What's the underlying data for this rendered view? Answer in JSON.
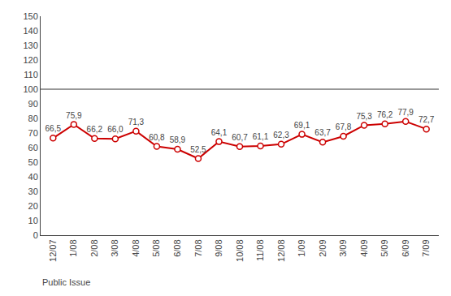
{
  "chart_data": {
    "type": "line",
    "categories": [
      "12/07",
      "1/08",
      "2/08",
      "3/08",
      "4/08",
      "5/08",
      "6/08",
      "7/08",
      "9/08",
      "10/08",
      "11/08",
      "12/08",
      "1/09",
      "2/09",
      "3/09",
      "4/09",
      "5/09",
      "6/09",
      "7/09"
    ],
    "values": [
      66.5,
      75.9,
      66.2,
      66.0,
      71.3,
      60.8,
      58.9,
      52.5,
      64.1,
      60.7,
      61.1,
      62.3,
      69.1,
      63.7,
      67.8,
      75.3,
      76.2,
      77.9,
      72.7
    ],
    "value_labels": [
      "66,5",
      "75,9",
      "66,2",
      "66,0",
      "71,3",
      "60,8",
      "58,9",
      "52,5",
      "64,1",
      "60,7",
      "61,1",
      "62,3",
      "69,1",
      "63,7",
      "67,8",
      "75,3",
      "76,2",
      "77,9",
      "72,7"
    ],
    "data_labels": true,
    "color": "#cc0000",
    "marker": "circle",
    "hline": 100,
    "hline_color": "#333333",
    "ylim": [
      0,
      150
    ],
    "yticks": [
      0,
      10,
      20,
      30,
      40,
      50,
      60,
      70,
      80,
      90,
      100,
      110,
      120,
      130,
      140,
      150
    ],
    "grid": false,
    "footer": "Public Issue"
  }
}
